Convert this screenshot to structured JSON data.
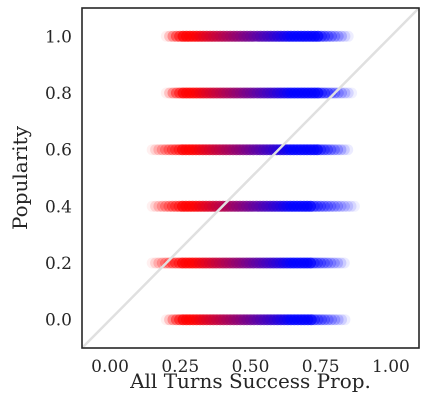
{
  "chart_data": {
    "type": "scatter",
    "title": "",
    "xlabel": "All Turns Success Prop.",
    "ylabel": "Popularity",
    "xlim": [
      -0.1,
      1.1
    ],
    "ylim": [
      -0.1,
      1.1
    ],
    "xticks": [
      "0.00",
      "0.25",
      "0.50",
      "0.75",
      "1.00"
    ],
    "yticks": [
      "0.0",
      "0.2",
      "0.4",
      "0.6",
      "0.8",
      "1.0"
    ],
    "grid": false,
    "reference_line": {
      "from": [
        -0.1,
        -0.1
      ],
      "to": [
        1.1,
        1.1
      ],
      "color": "#e0e0e0"
    },
    "color_scale": {
      "low": "#ff0000",
      "mid": "#800080",
      "high": "#0000ff"
    },
    "rows": [
      {
        "y": 1.0,
        "x_min": 0.2,
        "x_max": 0.85,
        "dense_min": 0.25,
        "dense_max": 0.75
      },
      {
        "y": 0.8,
        "x_min": 0.2,
        "x_max": 0.86,
        "dense_min": 0.25,
        "dense_max": 0.75
      },
      {
        "y": 0.6,
        "x_min": 0.15,
        "x_max": 0.85,
        "dense_min": 0.25,
        "dense_max": 0.75
      },
      {
        "y": 0.4,
        "x_min": 0.15,
        "x_max": 0.87,
        "dense_min": 0.25,
        "dense_max": 0.72
      },
      {
        "y": 0.2,
        "x_min": 0.15,
        "x_max": 0.84,
        "dense_min": 0.25,
        "dense_max": 0.72
      },
      {
        "y": 0.0,
        "x_min": 0.2,
        "x_max": 0.84,
        "dense_min": 0.25,
        "dense_max": 0.72
      }
    ]
  }
}
